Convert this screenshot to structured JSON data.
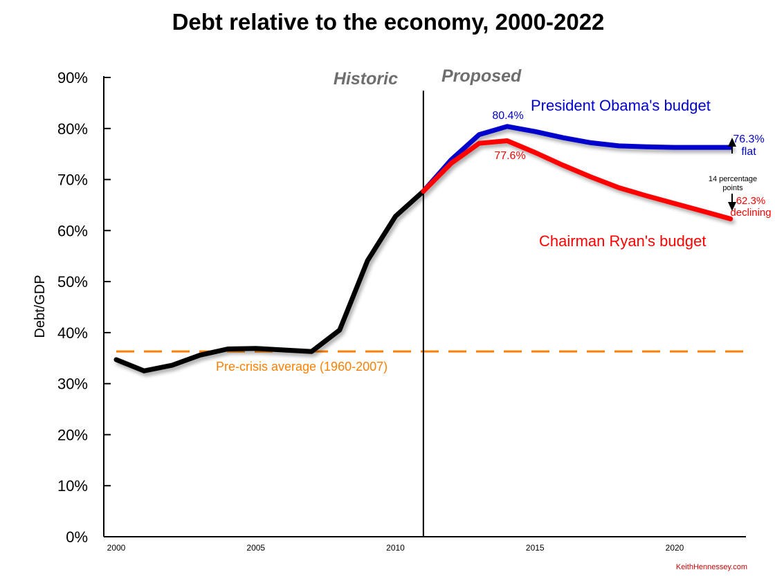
{
  "chart_data": {
    "type": "line",
    "title": "Debt relative to the economy, 2000-2022",
    "ylabel": "Debt/GDP",
    "xlim": [
      2000,
      2022.6
    ],
    "ylim": [
      0,
      90
    ],
    "y_ticks": [
      "0%",
      "10%",
      "20%",
      "30%",
      "40%",
      "50%",
      "60%",
      "70%",
      "80%",
      "90%"
    ],
    "y_tick_values": [
      0,
      10,
      20,
      30,
      40,
      50,
      60,
      70,
      80,
      90
    ],
    "x_ticks": [
      "2000",
      "2005",
      "2010",
      "2015",
      "2020"
    ],
    "x_tick_values": [
      2000,
      2005,
      2010,
      2015,
      2020
    ],
    "grid": false,
    "divider_x": 2011,
    "phase_labels": {
      "historic": "Historic",
      "proposed": "Proposed"
    },
    "series": [
      {
        "name": "Historic",
        "color": "#000000",
        "x": [
          2000,
          2001,
          2002,
          2003,
          2004,
          2005,
          2006,
          2007,
          2008,
          2009,
          2010,
          2011
        ],
        "y": [
          34.7,
          32.5,
          33.6,
          35.6,
          36.8,
          36.9,
          36.6,
          36.3,
          40.5,
          54.1,
          62.8,
          67.7
        ]
      },
      {
        "name": "President Obama's budget",
        "color": "#0000cc",
        "x": [
          2011,
          2012,
          2013,
          2014,
          2015,
          2016,
          2017,
          2018,
          2019,
          2020,
          2021,
          2022
        ],
        "y": [
          67.7,
          73.9,
          78.8,
          80.4,
          79.4,
          78.2,
          77.2,
          76.6,
          76.4,
          76.3,
          76.3,
          76.3
        ]
      },
      {
        "name": "Chairman Ryan's budget",
        "color": "#ff0000",
        "x": [
          2011,
          2012,
          2013,
          2014,
          2015,
          2016,
          2017,
          2018,
          2019,
          2020,
          2021,
          2022
        ],
        "y": [
          67.7,
          73.2,
          77.1,
          77.6,
          75.3,
          72.8,
          70.5,
          68.4,
          66.8,
          65.3,
          63.8,
          62.3
        ]
      }
    ],
    "reference_line": {
      "label": "Pre-crisis average (1960-2007)",
      "value": 36.3,
      "color": "#ff8000",
      "style": "dashed"
    },
    "annotations": {
      "obama_peak": "80.4%",
      "ryan_peak": "77.6%",
      "obama_end": "76.3%",
      "obama_end_note": "flat",
      "ryan_end": "62.3%",
      "ryan_end_note": "declining",
      "gap_line1": "14 percentage",
      "gap_line2": "points"
    },
    "credit": "KeithHennessey.com"
  }
}
